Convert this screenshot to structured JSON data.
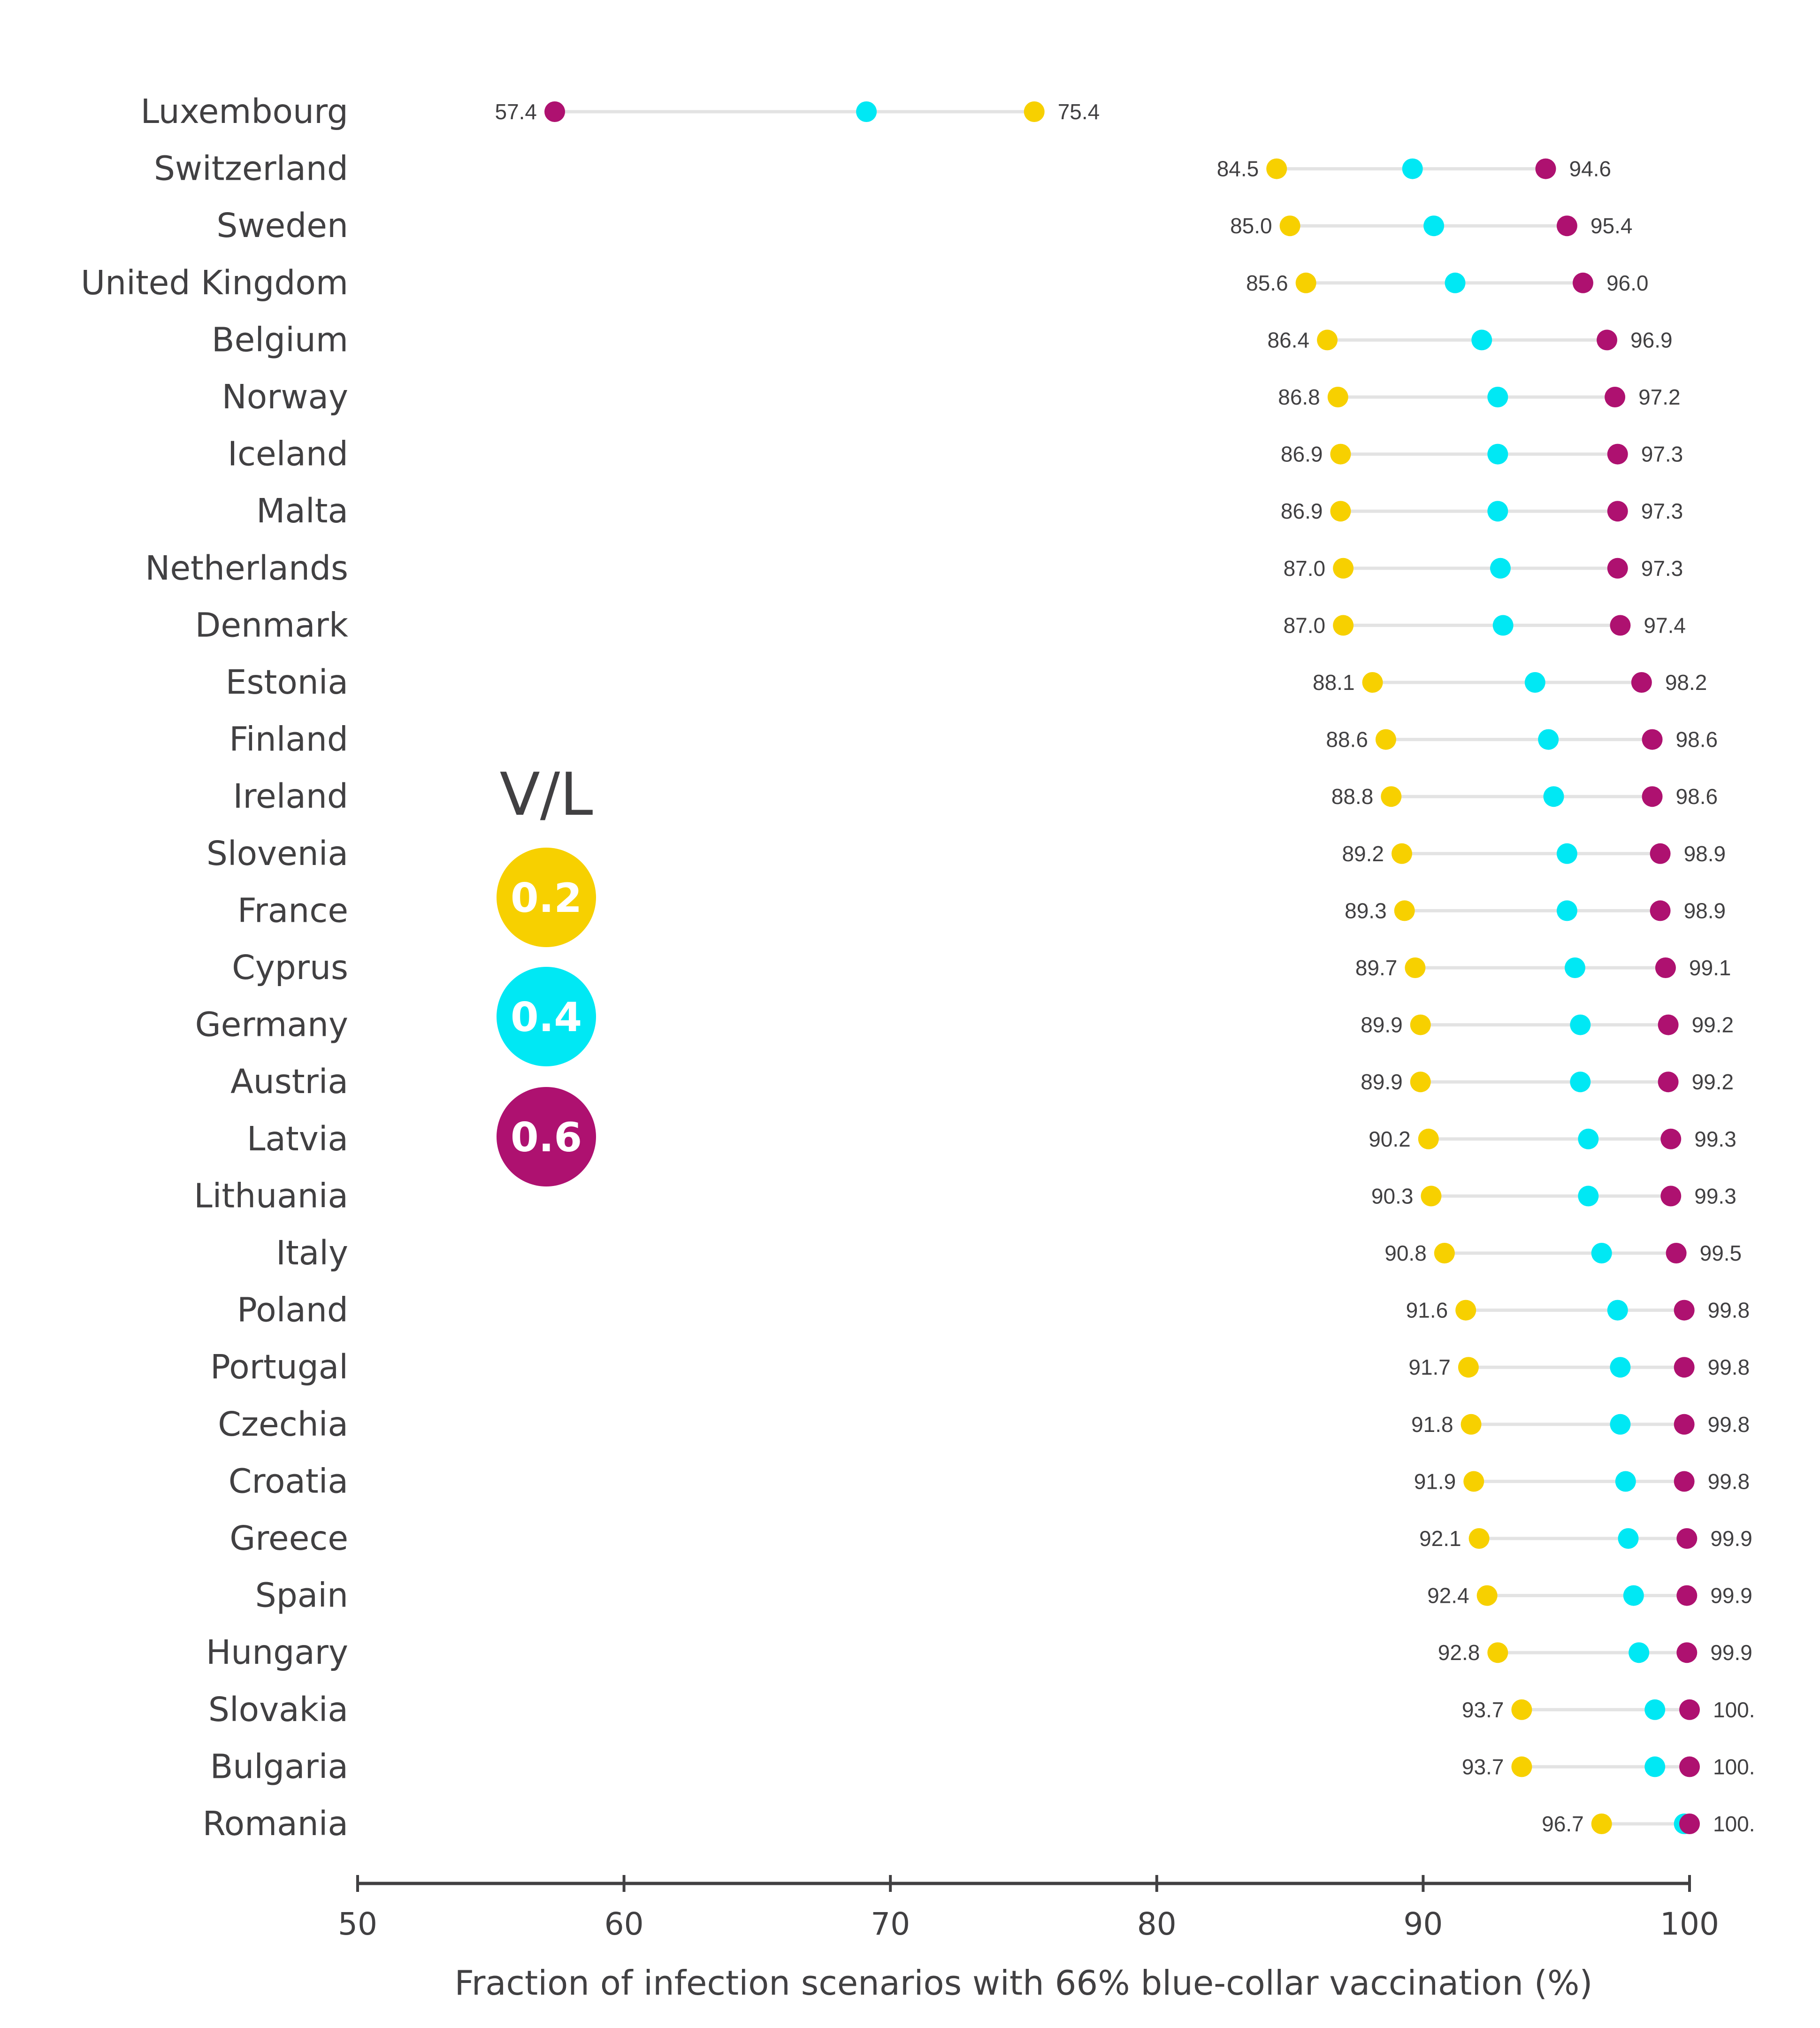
{
  "chart_data": {
    "type": "dumbbell",
    "xlabel": "Fraction of infection scenarios with 66% blue-collar vaccination (%)",
    "xlim": [
      50,
      100
    ],
    "xticks": [
      "50",
      "60",
      "70",
      "80",
      "90",
      "100"
    ],
    "legend": {
      "title": "V/L",
      "placement": "center-left",
      "entries": [
        {
          "label": "0.2",
          "color": "#f7d000"
        },
        {
          "label": "0.4",
          "color": "#00e8f4"
        },
        {
          "label": "0.6",
          "color": "#ae1170"
        }
      ]
    },
    "colors": {
      "low": "#f7d000",
      "mid": "#00e8f4",
      "high": "#ae1170",
      "connector": "#e3e3e3",
      "axis": "#414042"
    },
    "rows": [
      {
        "country": "Luxembourg",
        "v02": 75.4,
        "v04": 69.1,
        "v06": 57.4,
        "v02_label": "75.4",
        "v06_label": "57.4"
      },
      {
        "country": "Switzerland",
        "v02": 84.5,
        "v04": 89.6,
        "v06": 94.6,
        "v02_label": "84.5",
        "v06_label": "94.6"
      },
      {
        "country": "Sweden",
        "v02": 85.0,
        "v04": 90.4,
        "v06": 95.4,
        "v02_label": "85.0",
        "v06_label": "95.4"
      },
      {
        "country": "United Kingdom",
        "v02": 85.6,
        "v04": 91.2,
        "v06": 96.0,
        "v02_label": "85.6",
        "v06_label": "96.0"
      },
      {
        "country": "Belgium",
        "v02": 86.4,
        "v04": 92.2,
        "v06": 96.9,
        "v02_label": "86.4",
        "v06_label": "96.9"
      },
      {
        "country": "Norway",
        "v02": 86.8,
        "v04": 92.8,
        "v06": 97.2,
        "v02_label": "86.8",
        "v06_label": "97.2"
      },
      {
        "country": "Iceland",
        "v02": 86.9,
        "v04": 92.8,
        "v06": 97.3,
        "v02_label": "86.9",
        "v06_label": "97.3"
      },
      {
        "country": "Malta",
        "v02": 86.9,
        "v04": 92.8,
        "v06": 97.3,
        "v02_label": "86.9",
        "v06_label": "97.3"
      },
      {
        "country": "Netherlands",
        "v02": 87.0,
        "v04": 92.9,
        "v06": 97.3,
        "v02_label": "87.0",
        "v06_label": "97.3"
      },
      {
        "country": "Denmark",
        "v02": 87.0,
        "v04": 93.0,
        "v06": 97.4,
        "v02_label": "87.0",
        "v06_label": "97.4"
      },
      {
        "country": "Estonia",
        "v02": 88.1,
        "v04": 94.2,
        "v06": 98.2,
        "v02_label": "88.1",
        "v06_label": "98.2"
      },
      {
        "country": "Finland",
        "v02": 88.6,
        "v04": 94.7,
        "v06": 98.6,
        "v02_label": "88.6",
        "v06_label": "98.6"
      },
      {
        "country": "Ireland",
        "v02": 88.8,
        "v04": 94.9,
        "v06": 98.6,
        "v02_label": "88.8",
        "v06_label": "98.6"
      },
      {
        "country": "Slovenia",
        "v02": 89.2,
        "v04": 95.4,
        "v06": 98.9,
        "v02_label": "89.2",
        "v06_label": "98.9"
      },
      {
        "country": "France",
        "v02": 89.3,
        "v04": 95.4,
        "v06": 98.9,
        "v02_label": "89.3",
        "v06_label": "98.9"
      },
      {
        "country": "Cyprus",
        "v02": 89.7,
        "v04": 95.7,
        "v06": 99.1,
        "v02_label": "89.7",
        "v06_label": "99.1"
      },
      {
        "country": "Germany",
        "v02": 89.9,
        "v04": 95.9,
        "v06": 99.2,
        "v02_label": "89.9",
        "v06_label": "99.2"
      },
      {
        "country": "Austria",
        "v02": 89.9,
        "v04": 95.9,
        "v06": 99.2,
        "v02_label": "89.9",
        "v06_label": "99.2"
      },
      {
        "country": "Latvia",
        "v02": 90.2,
        "v04": 96.2,
        "v06": 99.3,
        "v02_label": "90.2",
        "v06_label": "99.3"
      },
      {
        "country": "Lithuania",
        "v02": 90.3,
        "v04": 96.2,
        "v06": 99.3,
        "v02_label": "90.3",
        "v06_label": "99.3"
      },
      {
        "country": "Italy",
        "v02": 90.8,
        "v04": 96.7,
        "v06": 99.5,
        "v02_label": "90.8",
        "v06_label": "99.5"
      },
      {
        "country": "Poland",
        "v02": 91.6,
        "v04": 97.3,
        "v06": 99.8,
        "v02_label": "91.6",
        "v06_label": "99.8"
      },
      {
        "country": "Portugal",
        "v02": 91.7,
        "v04": 97.4,
        "v06": 99.8,
        "v02_label": "91.7",
        "v06_label": "99.8"
      },
      {
        "country": "Czechia",
        "v02": 91.8,
        "v04": 97.4,
        "v06": 99.8,
        "v02_label": "91.8",
        "v06_label": "99.8"
      },
      {
        "country": "Croatia",
        "v02": 91.9,
        "v04": 97.6,
        "v06": 99.8,
        "v02_label": "91.9",
        "v06_label": "99.8"
      },
      {
        "country": "Greece",
        "v02": 92.1,
        "v04": 97.7,
        "v06": 99.9,
        "v02_label": "92.1",
        "v06_label": "99.9"
      },
      {
        "country": "Spain",
        "v02": 92.4,
        "v04": 97.9,
        "v06": 99.9,
        "v02_label": "92.4",
        "v06_label": "99.9"
      },
      {
        "country": "Hungary",
        "v02": 92.8,
        "v04": 98.1,
        "v06": 99.9,
        "v02_label": "92.8",
        "v06_label": "99.9"
      },
      {
        "country": "Slovakia",
        "v02": 93.7,
        "v04": 98.7,
        "v06": 100.0,
        "v02_label": "93.7",
        "v06_label": "100."
      },
      {
        "country": "Bulgaria",
        "v02": 93.7,
        "v04": 98.7,
        "v06": 100.0,
        "v02_label": "93.7",
        "v06_label": "100."
      },
      {
        "country": "Romania",
        "v02": 96.7,
        "v04": 99.8,
        "v06": 100.0,
        "v02_label": "96.7",
        "v06_label": "100."
      }
    ]
  }
}
